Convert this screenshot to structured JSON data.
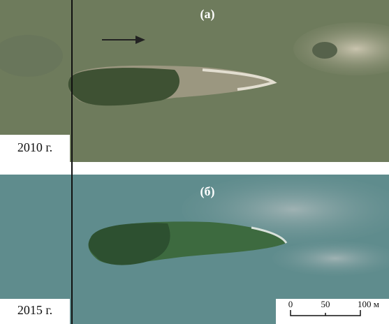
{
  "panels": [
    {
      "label": "(а)",
      "year": "2010 г."
    },
    {
      "label": "(б)",
      "year": "2015 г."
    }
  ],
  "scale_bar": {
    "ticks": [
      "0",
      "50",
      "100 м"
    ]
  }
}
